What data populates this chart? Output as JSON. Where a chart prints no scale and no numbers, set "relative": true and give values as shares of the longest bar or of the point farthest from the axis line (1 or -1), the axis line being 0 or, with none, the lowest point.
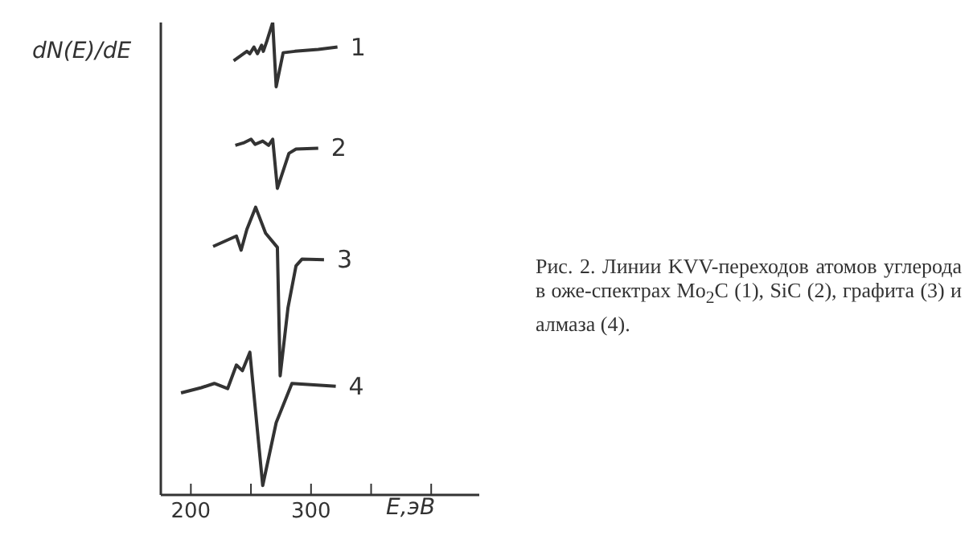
{
  "chart_data": {
    "type": "line",
    "relative": true,
    "ylabel": "dN(E)/dE",
    "xlabel": "E,эВ",
    "xlim": [
      175,
      440
    ],
    "xticks": [
      200,
      {
        "value": 250,
        "label": null
      },
      300,
      {
        "value": 350,
        "label": null
      },
      {
        "value": 400,
        "label": null
      }
    ],
    "tick_labels": "x",
    "grid": false,
    "legend": false,
    "marker": "none",
    "line_style": "solid",
    "annotations": [
      "Рис. 2. Линии KVV-переходов атомов углерода в оже-спектрах Mo$_{2}$C (1), SiC (2), графита (3) и алмаза (4)."
    ],
    "series": [
      {
        "name": "1",
        "color": "#333333",
        "x": [
          235.6,
          246.6,
          249.1,
          252.5,
          255.4,
          258.9,
          260.3,
          263.3,
          268.1,
          271,
          276.8,
          286.6,
          306,
          322
        ],
        "values": [
          0.919,
          0.939,
          0.934,
          0.948,
          0.934,
          0.952,
          0.939,
          0.961,
          1.0,
          0.864,
          0.936,
          0.939,
          0.943,
          0.948
        ]
      },
      {
        "name": "2",
        "color": "#333333",
        "x": [
          237,
          243.7,
          250.1,
          253.5,
          259.8,
          264.7,
          268.1,
          272,
          281.6,
          287.5,
          306
        ],
        "values": [
          0.74,
          0.745,
          0.753,
          0.742,
          0.749,
          0.74,
          0.753,
          0.649,
          0.723,
          0.732,
          0.734
        ]
      },
      {
        "name": "3",
        "color": "#333333",
        "x": [
          218.5,
          237.9,
          241.8,
          246.6,
          253.9,
          262.2,
          272,
          274.3,
          280.8,
          287.5,
          292.4,
          310.8
        ],
        "values": [
          0.526,
          0.548,
          0.518,
          0.562,
          0.609,
          0.554,
          0.524,
          0.252,
          0.396,
          0.485,
          0.499,
          0.498
        ]
      },
      {
        "name": "4",
        "color": "#333333",
        "x": [
          191.8,
          208.7,
          219.5,
          230.6,
          237.9,
          242.9,
          249.1,
          259.8,
          271,
          284.1,
          320.6
        ],
        "values": [
          0.216,
          0.227,
          0.236,
          0.225,
          0.275,
          0.263,
          0.302,
          0.02,
          0.153,
          0.236,
          0.23
        ]
      }
    ]
  }
}
